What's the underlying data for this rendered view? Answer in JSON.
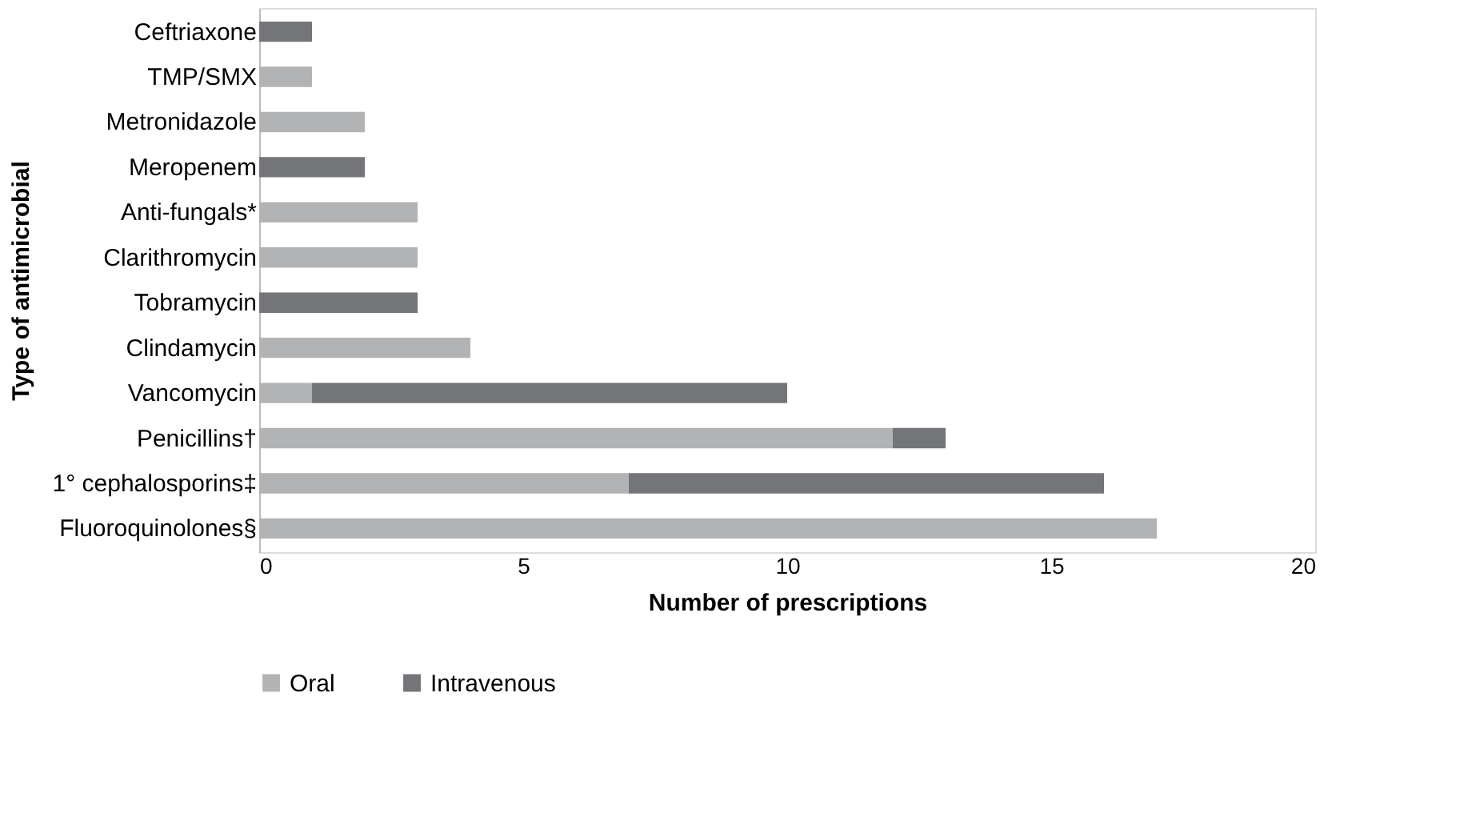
{
  "chart_data": {
    "type": "bar",
    "orientation": "horizontal",
    "stacked": true,
    "xlabel": "Number of prescriptions",
    "ylabel": "Type of antimicrobial",
    "categories": [
      "Ceftriaxone",
      "TMP/SMX",
      "Metronidazole",
      "Meropenem",
      "Anti-fungals*",
      "Clarithromycin",
      "Tobramycin",
      "Clindamycin",
      "Vancomycin",
      "Penicillins†",
      "1° cephalosporins‡",
      "Fluoroquinolones§"
    ],
    "series": [
      {
        "name": "Oral",
        "color": "#b1b3b5",
        "values": [
          null,
          1,
          2,
          null,
          3,
          3,
          null,
          4,
          1,
          12,
          7,
          17
        ]
      },
      {
        "name": "Intravenous",
        "color": "#747578",
        "values": [
          1,
          null,
          null,
          2,
          null,
          null,
          3,
          null,
          9,
          1,
          9,
          null
        ]
      }
    ],
    "xlim": [
      0,
      20
    ],
    "xticks": [
      0,
      5,
      10,
      15,
      20
    ],
    "grid": false,
    "legend": "bottom"
  }
}
